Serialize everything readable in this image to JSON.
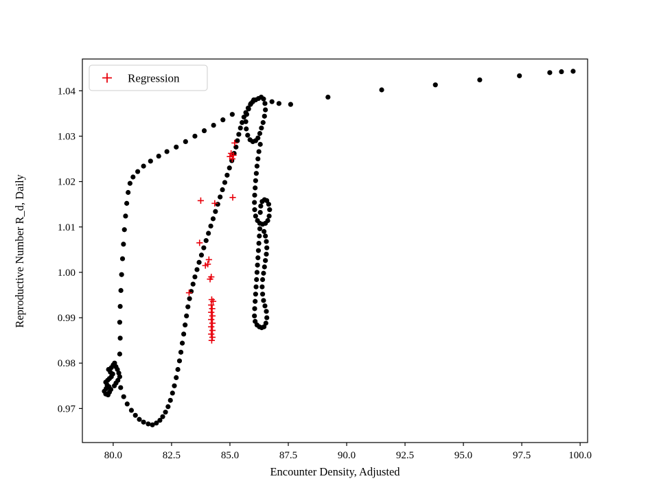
{
  "figure": {
    "background": "#ffffff"
  },
  "chart_data": {
    "type": "scatter",
    "title": "",
    "xlabel": "Encounter Density, Adjusted",
    "ylabel": "Reproductive Number R_d, Daily",
    "xlim": [
      78.68,
      100.32
    ],
    "ylim": [
      0.9625,
      1.047
    ],
    "xticks": [
      "80.0",
      "82.5",
      "85.0",
      "87.5",
      "90.0",
      "92.5",
      "95.0",
      "97.5",
      "100.0"
    ],
    "yticks": [
      "0.97",
      "0.98",
      "0.99",
      "1.00",
      "1.01",
      "1.02",
      "1.03",
      "1.04"
    ],
    "grid": false,
    "legend": {
      "position": "upper left",
      "entries": [
        {
          "label": "Regression",
          "marker": "plus",
          "color": "#e8000b"
        }
      ]
    },
    "series": [
      {
        "name": "trajectory",
        "marker": "circle",
        "color": "#000000",
        "points": [
          [
            79.68,
            0.9732
          ],
          [
            79.62,
            0.9738
          ],
          [
            79.7,
            0.9744
          ],
          [
            79.78,
            0.973
          ],
          [
            79.84,
            0.9736
          ],
          [
            79.9,
            0.9742
          ],
          [
            79.82,
            0.9748
          ],
          [
            79.74,
            0.9752
          ],
          [
            79.68,
            0.9758
          ],
          [
            79.76,
            0.9762
          ],
          [
            79.84,
            0.9766
          ],
          [
            79.92,
            0.977
          ],
          [
            79.98,
            0.9776
          ],
          [
            79.88,
            0.978
          ],
          [
            79.8,
            0.9786
          ],
          [
            79.92,
            0.979
          ],
          [
            80.0,
            0.9796
          ],
          [
            80.06,
            0.98
          ],
          [
            80.12,
            0.9792
          ],
          [
            80.18,
            0.9786
          ],
          [
            80.24,
            0.9778
          ],
          [
            80.28,
            0.977
          ],
          [
            80.2,
            0.9762
          ],
          [
            80.12,
            0.9756
          ],
          [
            80.05,
            0.975
          ],
          [
            80.32,
            0.9746
          ],
          [
            80.45,
            0.9726
          ],
          [
            80.6,
            0.971
          ],
          [
            80.78,
            0.9696
          ],
          [
            80.95,
            0.9685
          ],
          [
            81.12,
            0.9676
          ],
          [
            81.3,
            0.967
          ],
          [
            81.5,
            0.9666
          ],
          [
            81.68,
            0.9664
          ],
          [
            81.85,
            0.9668
          ],
          [
            82.0,
            0.9674
          ],
          [
            82.12,
            0.9682
          ],
          [
            82.24,
            0.9692
          ],
          [
            82.35,
            0.9704
          ],
          [
            82.45,
            0.9718
          ],
          [
            82.54,
            0.9734
          ],
          [
            82.62,
            0.975
          ],
          [
            82.7,
            0.9768
          ],
          [
            82.77,
            0.9786
          ],
          [
            82.84,
            0.9805
          ],
          [
            82.9,
            0.9824
          ],
          [
            82.96,
            0.9844
          ],
          [
            83.02,
            0.9864
          ],
          [
            83.08,
            0.9884
          ],
          [
            83.14,
            0.9904
          ],
          [
            83.2,
            0.9924
          ],
          [
            83.27,
            0.9942
          ],
          [
            83.34,
            0.9958
          ],
          [
            83.42,
            0.9974
          ],
          [
            83.5,
            0.999
          ],
          [
            83.59,
            1.0006
          ],
          [
            83.68,
            1.0022
          ],
          [
            83.78,
            1.0038
          ],
          [
            83.88,
            1.0054
          ],
          [
            83.98,
            1.007
          ],
          [
            84.08,
            1.0086
          ],
          [
            84.18,
            1.0102
          ],
          [
            84.28,
            1.0118
          ],
          [
            84.38,
            1.0134
          ],
          [
            84.48,
            1.015
          ],
          [
            84.58,
            1.0166
          ],
          [
            84.68,
            1.0182
          ],
          [
            84.78,
            1.0198
          ],
          [
            84.88,
            1.0214
          ],
          [
            84.98,
            1.023
          ],
          [
            85.08,
            1.0246
          ],
          [
            85.18,
            1.0262
          ],
          [
            85.26,
            1.0276
          ],
          [
            85.32,
            1.029
          ],
          [
            85.38,
            1.0304
          ],
          [
            85.45,
            1.0318
          ],
          [
            85.52,
            1.033
          ],
          [
            85.6,
            1.0342
          ],
          [
            85.68,
            1.0352
          ],
          [
            85.78,
            1.0362
          ],
          [
            85.88,
            1.037
          ],
          [
            85.98,
            1.0376
          ],
          [
            86.1,
            1.038
          ],
          [
            80.28,
            0.982
          ],
          [
            80.3,
            0.9855
          ],
          [
            80.28,
            0.989
          ],
          [
            80.3,
            0.9925
          ],
          [
            80.33,
            0.996
          ],
          [
            80.36,
            0.9995
          ],
          [
            80.4,
            1.003
          ],
          [
            80.44,
            1.0062
          ],
          [
            80.48,
            1.0094
          ],
          [
            80.53,
            1.0124
          ],
          [
            80.58,
            1.0152
          ],
          [
            80.64,
            1.0176
          ],
          [
            80.72,
            1.0196
          ],
          [
            80.85,
            1.021
          ],
          [
            81.05,
            1.0222
          ],
          [
            81.3,
            1.0234
          ],
          [
            81.6,
            1.0245
          ],
          [
            81.95,
            1.0256
          ],
          [
            82.3,
            1.0266
          ],
          [
            82.7,
            1.0276
          ],
          [
            83.1,
            1.0288
          ],
          [
            83.5,
            1.03
          ],
          [
            83.9,
            1.0312
          ],
          [
            84.3,
            1.0324
          ],
          [
            84.7,
            1.0336
          ],
          [
            85.1,
            1.0348
          ],
          [
            86.22,
            1.0383
          ],
          [
            86.34,
            1.0386
          ],
          [
            86.44,
            1.0382
          ],
          [
            86.5,
            1.0372
          ],
          [
            86.52,
            1.0358
          ],
          [
            86.48,
            1.0344
          ],
          [
            86.42,
            1.033
          ],
          [
            86.35,
            1.0318
          ],
          [
            86.28,
            1.0306
          ],
          [
            86.2,
            1.0296
          ],
          [
            86.1,
            1.029
          ],
          [
            85.98,
            1.0288
          ],
          [
            85.86,
            1.0292
          ],
          [
            85.76,
            1.0302
          ],
          [
            85.7,
            1.0316
          ],
          [
            85.68,
            1.0332
          ],
          [
            85.72,
            1.0348
          ],
          [
            85.8,
            1.036
          ],
          [
            85.9,
            1.0372
          ],
          [
            86.02,
            1.038
          ],
          [
            86.3,
            1.0282
          ],
          [
            86.24,
            1.0266
          ],
          [
            86.2,
            1.025
          ],
          [
            86.16,
            1.0234
          ],
          [
            86.13,
            1.0218
          ],
          [
            86.1,
            1.0202
          ],
          [
            86.08,
            1.0186
          ],
          [
            86.06,
            1.017
          ],
          [
            86.05,
            1.0154
          ],
          [
            86.06,
            1.0138
          ],
          [
            86.1,
            1.0124
          ],
          [
            86.18,
            1.0114
          ],
          [
            86.28,
            1.0108
          ],
          [
            86.4,
            1.0106
          ],
          [
            86.52,
            1.0108
          ],
          [
            86.62,
            1.0114
          ],
          [
            86.68,
            1.0124
          ],
          [
            86.7,
            1.0138
          ],
          [
            86.66,
            1.015
          ],
          [
            86.58,
            1.0158
          ],
          [
            86.48,
            1.016
          ],
          [
            86.38,
            1.0156
          ],
          [
            86.32,
            1.0146
          ],
          [
            86.3,
            1.0132
          ],
          [
            86.28,
            1.0096
          ],
          [
            86.26,
            1.008
          ],
          [
            86.24,
            1.0064
          ],
          [
            86.22,
            1.0048
          ],
          [
            86.2,
            1.0032
          ],
          [
            86.18,
            1.0016
          ],
          [
            86.16,
            1.0
          ],
          [
            86.14,
            0.9984
          ],
          [
            86.12,
            0.9968
          ],
          [
            86.1,
            0.9952
          ],
          [
            86.08,
            0.9936
          ],
          [
            86.06,
            0.992
          ],
          [
            86.05,
            0.9904
          ],
          [
            86.08,
            0.9892
          ],
          [
            86.16,
            0.9884
          ],
          [
            86.26,
            0.988
          ],
          [
            86.36,
            0.9878
          ],
          [
            86.46,
            0.988
          ],
          [
            86.54,
            0.9888
          ],
          [
            86.58,
            0.99
          ],
          [
            86.56,
            0.9914
          ],
          [
            86.5,
            0.9926
          ],
          [
            86.44,
            0.9938
          ],
          [
            86.4,
            0.9952
          ],
          [
            86.38,
            0.9968
          ],
          [
            86.4,
            0.9984
          ],
          [
            86.44,
            0.9998
          ],
          [
            86.48,
            1.0012
          ],
          [
            86.52,
            1.0026
          ],
          [
            86.56,
            1.004
          ],
          [
            86.58,
            1.0054
          ],
          [
            86.56,
            1.0068
          ],
          [
            86.52,
            1.008
          ],
          [
            86.46,
            1.009
          ],
          [
            86.8,
            1.0376
          ],
          [
            87.1,
            1.0372
          ],
          [
            87.6,
            1.037
          ],
          [
            89.2,
            1.0386
          ],
          [
            91.5,
            1.0402
          ],
          [
            93.8,
            1.0413
          ],
          [
            95.7,
            1.0424
          ],
          [
            97.4,
            1.0433
          ],
          [
            98.7,
            1.044
          ],
          [
            99.2,
            1.0442
          ],
          [
            99.7,
            1.0443
          ]
        ]
      },
      {
        "name": "Regression",
        "marker": "plus",
        "color": "#e8000b",
        "points": [
          [
            85.2,
            1.0285
          ],
          [
            85.05,
            1.0262
          ],
          [
            85.0,
            1.0255
          ],
          [
            85.1,
            1.025
          ],
          [
            85.15,
            1.0258
          ],
          [
            85.12,
            1.0165
          ],
          [
            83.75,
            1.0158
          ],
          [
            84.35,
            1.0152
          ],
          [
            83.7,
            1.0065
          ],
          [
            84.1,
            1.0028
          ],
          [
            83.95,
            1.0015
          ],
          [
            84.05,
            1.0018
          ],
          [
            84.2,
            0.999
          ],
          [
            84.15,
            0.9985
          ],
          [
            83.25,
            0.9955
          ],
          [
            84.22,
            0.994
          ],
          [
            84.28,
            0.9936
          ],
          [
            84.2,
            0.9928
          ],
          [
            84.24,
            0.992
          ],
          [
            84.2,
            0.9912
          ],
          [
            84.25,
            0.9904
          ],
          [
            84.2,
            0.9896
          ],
          [
            84.25,
            0.9888
          ],
          [
            84.2,
            0.988
          ],
          [
            84.25,
            0.9872
          ],
          [
            84.2,
            0.9864
          ],
          [
            84.25,
            0.9857
          ],
          [
            84.22,
            0.985
          ]
        ]
      }
    ]
  }
}
